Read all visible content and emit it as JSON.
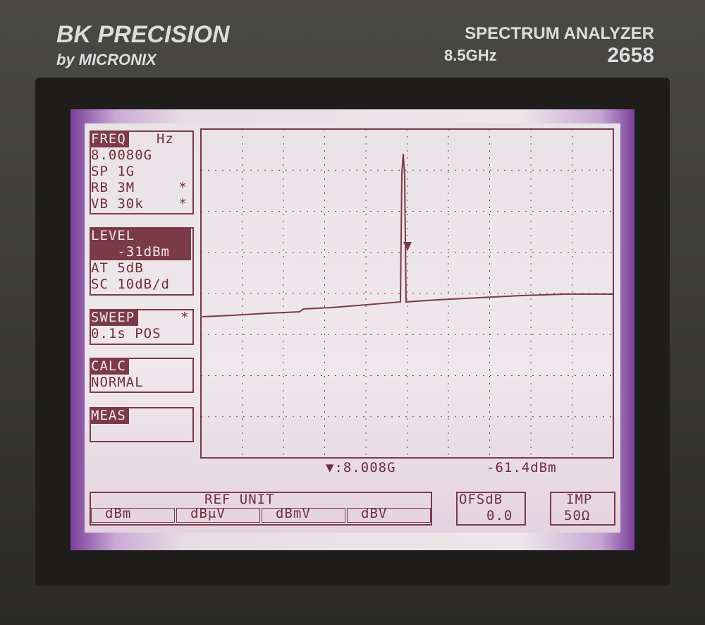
{
  "header": {
    "brand": "BK PRECISION",
    "sub_brand": "by MICRONIX",
    "product": "SPECTRUM ANALYZER",
    "band": "8.5GHz",
    "model": "2658"
  },
  "menu": [
    {
      "title": "FREQ",
      "flag": "Hz",
      "lines": [
        "8.0080G",
        "SP 1G",
        "RB 3M     *",
        "VB 30k    *"
      ]
    },
    {
      "title": "LEVEL",
      "lines": [
        "   -31dBm",
        "AT 5dB",
        "SC 10dB/d"
      ]
    },
    {
      "title": "SWEEP",
      "flag": "*",
      "lines": [
        "0.1s POS"
      ]
    },
    {
      "title": "CALC",
      "lines": [
        "NORMAL"
      ]
    },
    {
      "title": "MEAS",
      "lines": []
    }
  ],
  "marker": {
    "frequency": "▼:8.008G",
    "level": "-61.4dBm"
  },
  "ref_unit": {
    "title": "REF UNIT",
    "options": [
      "dBm",
      "dBμV",
      "dBmV",
      "dBV"
    ]
  },
  "offset": {
    "title": "OFSdB",
    "value": "0.0"
  },
  "impedance": {
    "title": "IMP",
    "value": "50Ω"
  }
}
